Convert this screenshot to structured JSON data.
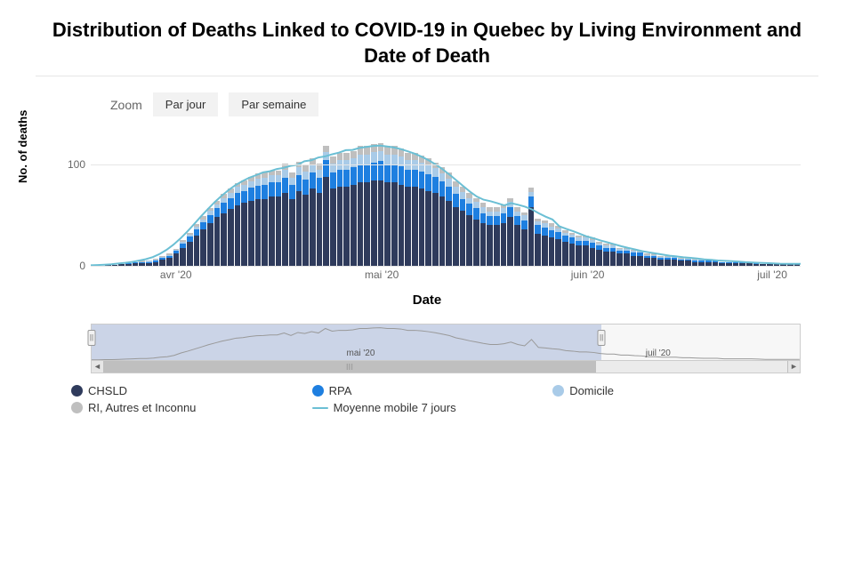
{
  "title": "Distribution of Deaths Linked to COVID-19 in Quebec by Living Environment and Date of Death",
  "title_fontsize": 22,
  "yaxis": {
    "title": "No. of deaths",
    "ticks": [
      0,
      100
    ],
    "max": 140
  },
  "xaxis": {
    "title": "Date",
    "ticks": [
      {
        "label": "avr '20",
        "pos": 0.12
      },
      {
        "label": "mai '20",
        "pos": 0.41
      },
      {
        "label": "juin '20",
        "pos": 0.7
      },
      {
        "label": "juil '20",
        "pos": 0.96
      }
    ]
  },
  "zoom": {
    "label": "Zoom",
    "buttons": [
      "Par jour",
      "Par semaine"
    ]
  },
  "series_colors": {
    "CHSLD": "#2f3b5c",
    "RPA": "#1e7fe0",
    "Domicile": "#a9cbe8",
    "RI": "#bfbfbf",
    "line": "#6bbfd4"
  },
  "legend": [
    {
      "key": "CHSLD",
      "label": "CHSLD",
      "type": "dot"
    },
    {
      "key": "RPA",
      "label": "RPA",
      "type": "dot"
    },
    {
      "key": "Domicile",
      "label": "Domicile",
      "type": "dot"
    },
    {
      "key": "RI",
      "label": "RI, Autres et Inconnu",
      "type": "dot"
    },
    {
      "key": "line",
      "label": "Moyenne mobile 7 jours",
      "type": "line"
    }
  ],
  "line_width": 2,
  "data": [
    {
      "c": 0,
      "r": 0,
      "d": 0,
      "x": 0
    },
    {
      "c": 0,
      "r": 0,
      "d": 0,
      "x": 0
    },
    {
      "c": 1,
      "r": 0,
      "d": 0,
      "x": 0
    },
    {
      "c": 1,
      "r": 0,
      "d": 0,
      "x": 0
    },
    {
      "c": 2,
      "r": 0,
      "d": 0,
      "x": 0
    },
    {
      "c": 2,
      "r": 1,
      "d": 0,
      "x": 0
    },
    {
      "c": 3,
      "r": 1,
      "d": 0,
      "x": 0
    },
    {
      "c": 3,
      "r": 1,
      "d": 0,
      "x": 1
    },
    {
      "c": 3,
      "r": 1,
      "d": 1,
      "x": 0
    },
    {
      "c": 4,
      "r": 1,
      "d": 1,
      "x": 1
    },
    {
      "c": 6,
      "r": 2,
      "d": 1,
      "x": 1
    },
    {
      "c": 8,
      "r": 2,
      "d": 1,
      "x": 1
    },
    {
      "c": 12,
      "r": 3,
      "d": 1,
      "x": 1
    },
    {
      "c": 18,
      "r": 4,
      "d": 2,
      "x": 2
    },
    {
      "c": 24,
      "r": 5,
      "d": 2,
      "x": 2
    },
    {
      "c": 30,
      "r": 6,
      "d": 3,
      "x": 2
    },
    {
      "c": 36,
      "r": 7,
      "d": 3,
      "x": 3
    },
    {
      "c": 42,
      "r": 8,
      "d": 4,
      "x": 3
    },
    {
      "c": 48,
      "r": 9,
      "d": 4,
      "x": 3
    },
    {
      "c": 52,
      "r": 10,
      "d": 5,
      "x": 4
    },
    {
      "c": 56,
      "r": 11,
      "d": 5,
      "x": 4
    },
    {
      "c": 60,
      "r": 12,
      "d": 6,
      "x": 4
    },
    {
      "c": 62,
      "r": 12,
      "d": 6,
      "x": 4
    },
    {
      "c": 64,
      "r": 13,
      "d": 6,
      "x": 5
    },
    {
      "c": 66,
      "r": 13,
      "d": 7,
      "x": 5
    },
    {
      "c": 66,
      "r": 14,
      "d": 7,
      "x": 5
    },
    {
      "c": 68,
      "r": 14,
      "d": 7,
      "x": 5
    },
    {
      "c": 68,
      "r": 14,
      "d": 7,
      "x": 5
    },
    {
      "c": 72,
      "r": 15,
      "d": 8,
      "x": 6
    },
    {
      "c": 66,
      "r": 14,
      "d": 7,
      "x": 5
    },
    {
      "c": 74,
      "r": 15,
      "d": 8,
      "x": 6
    },
    {
      "c": 70,
      "r": 15,
      "d": 8,
      "x": 6
    },
    {
      "c": 76,
      "r": 16,
      "d": 8,
      "x": 6
    },
    {
      "c": 72,
      "r": 15,
      "d": 8,
      "x": 6
    },
    {
      "c": 88,
      "r": 16,
      "d": 8,
      "x": 6
    },
    {
      "c": 76,
      "r": 16,
      "d": 9,
      "x": 7
    },
    {
      "c": 78,
      "r": 17,
      "d": 9,
      "x": 7
    },
    {
      "c": 78,
      "r": 17,
      "d": 9,
      "x": 7
    },
    {
      "c": 80,
      "r": 17,
      "d": 9,
      "x": 7
    },
    {
      "c": 82,
      "r": 18,
      "d": 10,
      "x": 8
    },
    {
      "c": 82,
      "r": 18,
      "d": 10,
      "x": 8
    },
    {
      "c": 84,
      "r": 18,
      "d": 10,
      "x": 8
    },
    {
      "c": 84,
      "r": 19,
      "d": 10,
      "x": 8
    },
    {
      "c": 82,
      "r": 18,
      "d": 10,
      "x": 8
    },
    {
      "c": 82,
      "r": 18,
      "d": 10,
      "x": 8
    },
    {
      "c": 80,
      "r": 18,
      "d": 10,
      "x": 8
    },
    {
      "c": 78,
      "r": 17,
      "d": 9,
      "x": 7
    },
    {
      "c": 78,
      "r": 17,
      "d": 9,
      "x": 7
    },
    {
      "c": 76,
      "r": 17,
      "d": 9,
      "x": 7
    },
    {
      "c": 74,
      "r": 16,
      "d": 9,
      "x": 7
    },
    {
      "c": 72,
      "r": 16,
      "d": 8,
      "x": 6
    },
    {
      "c": 68,
      "r": 15,
      "d": 8,
      "x": 6
    },
    {
      "c": 64,
      "r": 14,
      "d": 8,
      "x": 6
    },
    {
      "c": 58,
      "r": 13,
      "d": 7,
      "x": 5
    },
    {
      "c": 54,
      "r": 12,
      "d": 7,
      "x": 5
    },
    {
      "c": 50,
      "r": 11,
      "d": 6,
      "x": 5
    },
    {
      "c": 46,
      "r": 11,
      "d": 6,
      "x": 4
    },
    {
      "c": 42,
      "r": 10,
      "d": 6,
      "x": 4
    },
    {
      "c": 40,
      "r": 9,
      "d": 5,
      "x": 4
    },
    {
      "c": 40,
      "r": 9,
      "d": 5,
      "x": 4
    },
    {
      "c": 42,
      "r": 10,
      "d": 5,
      "x": 4
    },
    {
      "c": 48,
      "r": 10,
      "d": 5,
      "x": 4
    },
    {
      "c": 40,
      "r": 9,
      "d": 5,
      "x": 4
    },
    {
      "c": 36,
      "r": 9,
      "d": 5,
      "x": 3
    },
    {
      "c": 58,
      "r": 10,
      "d": 5,
      "x": 4
    },
    {
      "c": 32,
      "r": 8,
      "d": 4,
      "x": 3
    },
    {
      "c": 30,
      "r": 8,
      "d": 4,
      "x": 3
    },
    {
      "c": 28,
      "r": 7,
      "d": 4,
      "x": 3
    },
    {
      "c": 26,
      "r": 7,
      "d": 4,
      "x": 3
    },
    {
      "c": 24,
      "r": 6,
      "d": 3,
      "x": 2
    },
    {
      "c": 22,
      "r": 6,
      "d": 3,
      "x": 2
    },
    {
      "c": 20,
      "r": 5,
      "d": 3,
      "x": 2
    },
    {
      "c": 20,
      "r": 5,
      "d": 3,
      "x": 2
    },
    {
      "c": 18,
      "r": 5,
      "d": 3,
      "x": 2
    },
    {
      "c": 16,
      "r": 4,
      "d": 2,
      "x": 2
    },
    {
      "c": 14,
      "r": 4,
      "d": 2,
      "x": 2
    },
    {
      "c": 14,
      "r": 4,
      "d": 2,
      "x": 2
    },
    {
      "c": 12,
      "r": 3,
      "d": 2,
      "x": 1
    },
    {
      "c": 12,
      "r": 3,
      "d": 2,
      "x": 1
    },
    {
      "c": 10,
      "r": 3,
      "d": 2,
      "x": 1
    },
    {
      "c": 10,
      "r": 3,
      "d": 1,
      "x": 1
    },
    {
      "c": 8,
      "r": 2,
      "d": 1,
      "x": 1
    },
    {
      "c": 8,
      "r": 2,
      "d": 1,
      "x": 1
    },
    {
      "c": 6,
      "r": 2,
      "d": 1,
      "x": 1
    },
    {
      "c": 6,
      "r": 2,
      "d": 1,
      "x": 1
    },
    {
      "c": 6,
      "r": 2,
      "d": 1,
      "x": 1
    },
    {
      "c": 5,
      "r": 1,
      "d": 1,
      "x": 1
    },
    {
      "c": 5,
      "r": 1,
      "d": 1,
      "x": 1
    },
    {
      "c": 4,
      "r": 1,
      "d": 1,
      "x": 1
    },
    {
      "c": 4,
      "r": 1,
      "d": 1,
      "x": 0
    },
    {
      "c": 4,
      "r": 1,
      "d": 1,
      "x": 0
    },
    {
      "c": 4,
      "r": 1,
      "d": 1,
      "x": 0
    },
    {
      "c": 3,
      "r": 1,
      "d": 0,
      "x": 0
    },
    {
      "c": 3,
      "r": 1,
      "d": 0,
      "x": 0
    },
    {
      "c": 3,
      "r": 1,
      "d": 0,
      "x": 0
    },
    {
      "c": 3,
      "r": 1,
      "d": 0,
      "x": 0
    },
    {
      "c": 3,
      "r": 1,
      "d": 0,
      "x": 0
    },
    {
      "c": 2,
      "r": 1,
      "d": 0,
      "x": 0
    },
    {
      "c": 2,
      "r": 0,
      "d": 0,
      "x": 0
    },
    {
      "c": 2,
      "r": 0,
      "d": 0,
      "x": 0
    },
    {
      "c": 2,
      "r": 0,
      "d": 0,
      "x": 0
    },
    {
      "c": 2,
      "r": 0,
      "d": 0,
      "x": 0
    },
    {
      "c": 2,
      "r": 0,
      "d": 0,
      "x": 0
    },
    {
      "c": 2,
      "r": 0,
      "d": 0,
      "x": 0
    }
  ],
  "navigator": {
    "mask": {
      "from": 0,
      "to": 0.72
    },
    "xticks": [
      {
        "label": "mai '20",
        "pos": 0.38
      },
      {
        "label": "juil '20",
        "pos": 0.8
      }
    ],
    "scroll": {
      "thumb_from": 0,
      "thumb_to": 0.72
    },
    "line_color": "#999999"
  }
}
